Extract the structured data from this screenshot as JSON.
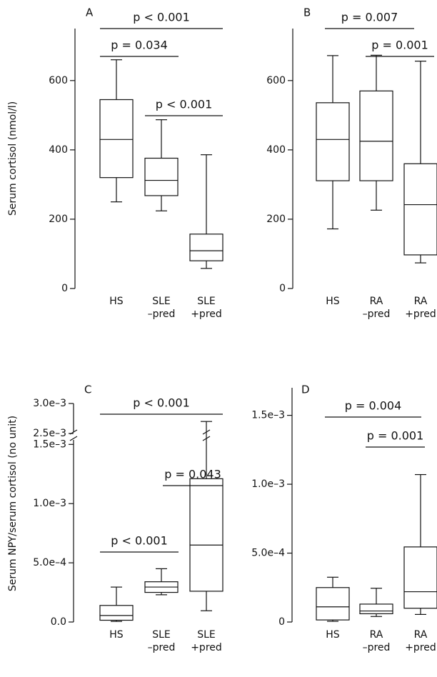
{
  "chart_data": [
    {
      "type": "box",
      "title": "A",
      "ylabel": "Serum cortisol (nmol/l)",
      "categories": [
        [
          "HS"
        ],
        [
          "SLE",
          "–pred"
        ],
        [
          "SLE",
          "+pred"
        ]
      ],
      "boxes": [
        {
          "min": 250,
          "q1": 320,
          "median": 430,
          "q3": 545,
          "max": 660
        },
        {
          "min": 224,
          "q1": 268,
          "median": 312,
          "q3": 376,
          "max": 487
        },
        {
          "min": 58,
          "q1": 80,
          "median": 109,
          "q3": 157,
          "max": 386
        }
      ],
      "ylim": [
        0,
        750
      ],
      "yticks": [
        0,
        200,
        400,
        600
      ],
      "color": "#000000",
      "annotations": [
        "p < 0.001",
        "p = 0.034",
        "p < 0.001"
      ]
    },
    {
      "type": "box",
      "title": "B",
      "categories": [
        [
          "HS"
        ],
        [
          "RA",
          "–pred"
        ],
        [
          "RA",
          "+pred"
        ]
      ],
      "boxes": [
        {
          "min": 172,
          "q1": 311,
          "median": 430,
          "q3": 536,
          "max": 672
        },
        {
          "min": 226,
          "q1": 311,
          "median": 425,
          "q3": 570,
          "max": 673
        },
        {
          "min": 74,
          "q1": 97,
          "median": 242,
          "q3": 360,
          "max": 656
        }
      ],
      "ylim": [
        0,
        750
      ],
      "yticks": [
        0,
        200,
        400,
        600
      ],
      "color": "#000000",
      "annotations": [
        "p = 0.007",
        "p = 0.001"
      ]
    },
    {
      "type": "box",
      "title": "C",
      "ylabel": "Serum NPY/serum cortisol (no unit)",
      "categories": [
        [
          "HS"
        ],
        [
          "SLE",
          "–pred"
        ],
        [
          "SLE",
          "+pred"
        ]
      ],
      "boxes": [
        {
          "min": 5e-06,
          "q1": 1.5e-05,
          "median": 5.5e-05,
          "q3": 0.00014,
          "max": 0.000295
        },
        {
          "min": 0.00023,
          "q1": 0.00025,
          "median": 0.000295,
          "q3": 0.00034,
          "max": 0.00045
        },
        {
          "min": 9.5e-05,
          "q1": 0.00026,
          "median": 0.00065,
          "q3": 0.00121,
          "max": 0.0027
        }
      ],
      "ylim": [
        0,
        0.003
      ],
      "y_break": [
        0.00155,
        0.0025
      ],
      "yticks": [
        {
          "value": 0,
          "label": "0.0"
        },
        {
          "value": 0.0005,
          "label": "5.0e–4"
        },
        {
          "value": 0.001,
          "label": "1.0e–3"
        },
        {
          "value": 0.0015,
          "label": "1.5e–3"
        },
        {
          "value": 0.0025,
          "label": "2.5e–3"
        },
        {
          "value": 0.003,
          "label": "3.0e–3"
        }
      ],
      "color": "#000000",
      "annotations": [
        "p < 0.001",
        "p = 0.043",
        "p < 0.001"
      ]
    },
    {
      "type": "box",
      "title": "D",
      "categories": [
        [
          "HS"
        ],
        [
          "RA",
          "–pred"
        ],
        [
          "RA",
          "+pred"
        ]
      ],
      "boxes": [
        {
          "min": 5e-06,
          "q1": 1.5e-05,
          "median": 0.00011,
          "q3": 0.00025,
          "max": 0.000325
        },
        {
          "min": 4e-05,
          "q1": 6e-05,
          "median": 8e-05,
          "q3": 0.00013,
          "max": 0.000245
        },
        {
          "min": 5.5e-05,
          "q1": 0.0001,
          "median": 0.00022,
          "q3": 0.000545,
          "max": 0.00107
        }
      ],
      "ylim": [
        0,
        0.0017
      ],
      "yticks": [
        0,
        {
          "value": 0.0005,
          "label": "5.0e–4"
        },
        {
          "value": 0.001,
          "label": "1.0e–3"
        },
        {
          "value": 0.0015,
          "label": "1.5e–3"
        }
      ],
      "color": "#000000",
      "annotations": [
        "p = 0.004",
        "p = 0.001"
      ]
    }
  ]
}
